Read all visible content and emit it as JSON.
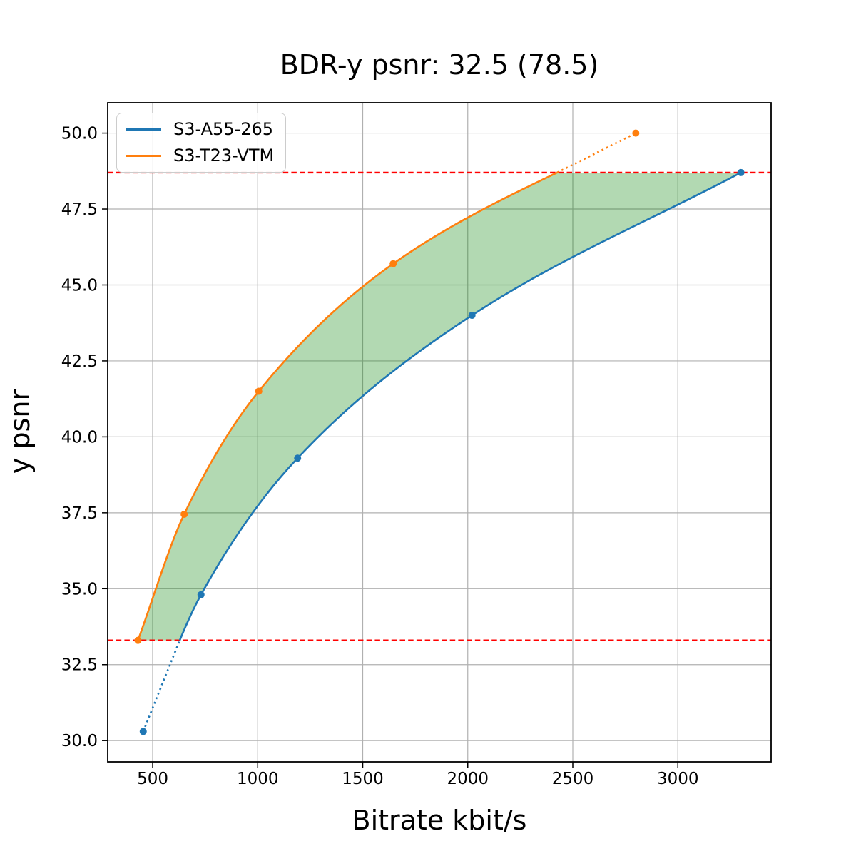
{
  "chart_data": {
    "type": "line",
    "title": "BDR-y psnr: 32.5 (78.5)",
    "xlabel": "Bitrate kbit/s",
    "ylabel": "y psnr",
    "xlim": [
      286,
      3444
    ],
    "ylim": [
      29.3,
      51.0
    ],
    "xticks": [
      500,
      1000,
      1500,
      2000,
      2500,
      3000
    ],
    "yticks": [
      30.0,
      32.5,
      35.0,
      37.5,
      40.0,
      42.5,
      45.0,
      47.5,
      50.0
    ],
    "grid": true,
    "grid_color": "#b0b0b0",
    "legend_position": "upper left",
    "series": [
      {
        "name": "S3-A55-265",
        "color": "#1f77b4",
        "x": [
          455,
          730,
          1190,
          2020,
          3300
        ],
        "y": [
          30.3,
          34.8,
          39.3,
          44.0,
          48.7
        ]
      },
      {
        "name": "S3-T23-VTM",
        "color": "#ff7f0e",
        "x": [
          430,
          650,
          1005,
          1645,
          2800
        ],
        "y": [
          33.3,
          37.45,
          41.5,
          45.7,
          50.0
        ]
      }
    ],
    "hlines": {
      "color": "#ff0000",
      "style": "dashed",
      "values": [
        48.7,
        33.3
      ]
    },
    "fill_between": {
      "color": "#008000",
      "opacity": 0.3,
      "between": [
        "S3-T23-VTM",
        "S3-A55-265"
      ],
      "y_range": [
        33.3,
        48.7
      ]
    },
    "line_style_note": "curves solid inside overlap region between hlines, dotted outside"
  }
}
